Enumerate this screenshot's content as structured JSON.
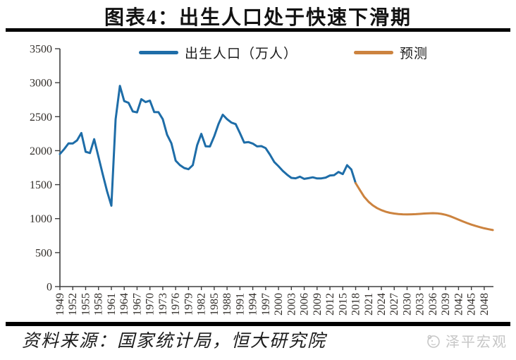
{
  "title": "图表4：出生人口处于快速下滑期",
  "source_note": "资料来源：国家统计局，恒大研究院",
  "watermark_text": "泽平宏观",
  "legend": {
    "birth_label": "出生人口（万人）",
    "forecast_label": "预测"
  },
  "colors": {
    "birth_line": "#1e6da8",
    "forecast_line": "#cc833f",
    "axis": "#3f3f3f",
    "tick_label": "#332f2b",
    "rule": "#000000",
    "watermark": "#c6c6c6"
  },
  "chart_data": {
    "type": "line",
    "title": "图表4：出生人口处于快速下滑期",
    "xlabel": "",
    "ylabel": "",
    "ylim": [
      0,
      3500
    ],
    "yticks": [
      0,
      500,
      1000,
      1500,
      2000,
      2500,
      3000,
      3500
    ],
    "xticks": [
      1949,
      1952,
      1955,
      1958,
      1961,
      1964,
      1967,
      1970,
      1973,
      1976,
      1979,
      1982,
      1985,
      1988,
      1991,
      1994,
      1997,
      2000,
      2003,
      2006,
      2009,
      2012,
      2015,
      2018,
      2021,
      2024,
      2027,
      2030,
      2033,
      2036,
      2039,
      2042,
      2045,
      2048
    ],
    "grid": false,
    "legend_position": "top",
    "series": [
      {
        "name": "出生人口（万人）",
        "data_name": "birth-line",
        "color": "#1e6da8",
        "x": [
          1949,
          1950,
          1951,
          1952,
          1953,
          1954,
          1955,
          1956,
          1957,
          1958,
          1959,
          1960,
          1961,
          1962,
          1963,
          1964,
          1965,
          1966,
          1967,
          1968,
          1969,
          1970,
          1971,
          1972,
          1973,
          1974,
          1975,
          1976,
          1977,
          1978,
          1979,
          1980,
          1981,
          1982,
          1983,
          1984,
          1985,
          1986,
          1987,
          1988,
          1989,
          1990,
          1991,
          1992,
          1993,
          1994,
          1995,
          1996,
          1997,
          1998,
          1999,
          2000,
          2001,
          2002,
          2003,
          2004,
          2005,
          2006,
          2007,
          2008,
          2009,
          2010,
          2011,
          2012,
          2013,
          2014,
          2015,
          2016,
          2017,
          2018
        ],
        "values": [
          1950,
          2023,
          2107,
          2105,
          2151,
          2260,
          1984,
          1965,
          2169,
          1909,
          1650,
          1402,
          1190,
          2460,
          2954,
          2729,
          2704,
          2577,
          2563,
          2757,
          2715,
          2736,
          2567,
          2566,
          2463,
          2235,
          2109,
          1853,
          1787,
          1745,
          1727,
          1787,
          2078,
          2247,
          2065,
          2062,
          2211,
          2393,
          2529,
          2464,
          2414,
          2391,
          2258,
          2119,
          2126,
          2104,
          2063,
          2067,
          2038,
          1942,
          1834,
          1771,
          1702,
          1647,
          1599,
          1593,
          1617,
          1585,
          1595,
          1608,
          1591,
          1592,
          1604,
          1635,
          1640,
          1687,
          1655,
          1786,
          1723,
          1523
        ]
      },
      {
        "name": "预测",
        "data_name": "forecast-line",
        "color": "#cc833f",
        "x": [
          2018,
          2019,
          2020,
          2021,
          2022,
          2023,
          2024,
          2025,
          2026,
          2027,
          2028,
          2029,
          2030,
          2031,
          2032,
          2033,
          2034,
          2035,
          2036,
          2037,
          2038,
          2039,
          2040,
          2041,
          2042,
          2043,
          2044,
          2045,
          2046,
          2047,
          2048,
          2049,
          2050
        ],
        "values": [
          1523,
          1420,
          1320,
          1248,
          1195,
          1155,
          1125,
          1102,
          1085,
          1075,
          1068,
          1064,
          1062,
          1063,
          1066,
          1070,
          1075,
          1078,
          1080,
          1078,
          1070,
          1056,
          1036,
          1012,
          986,
          960,
          935,
          912,
          892,
          874,
          858,
          844,
          832
        ]
      }
    ]
  }
}
